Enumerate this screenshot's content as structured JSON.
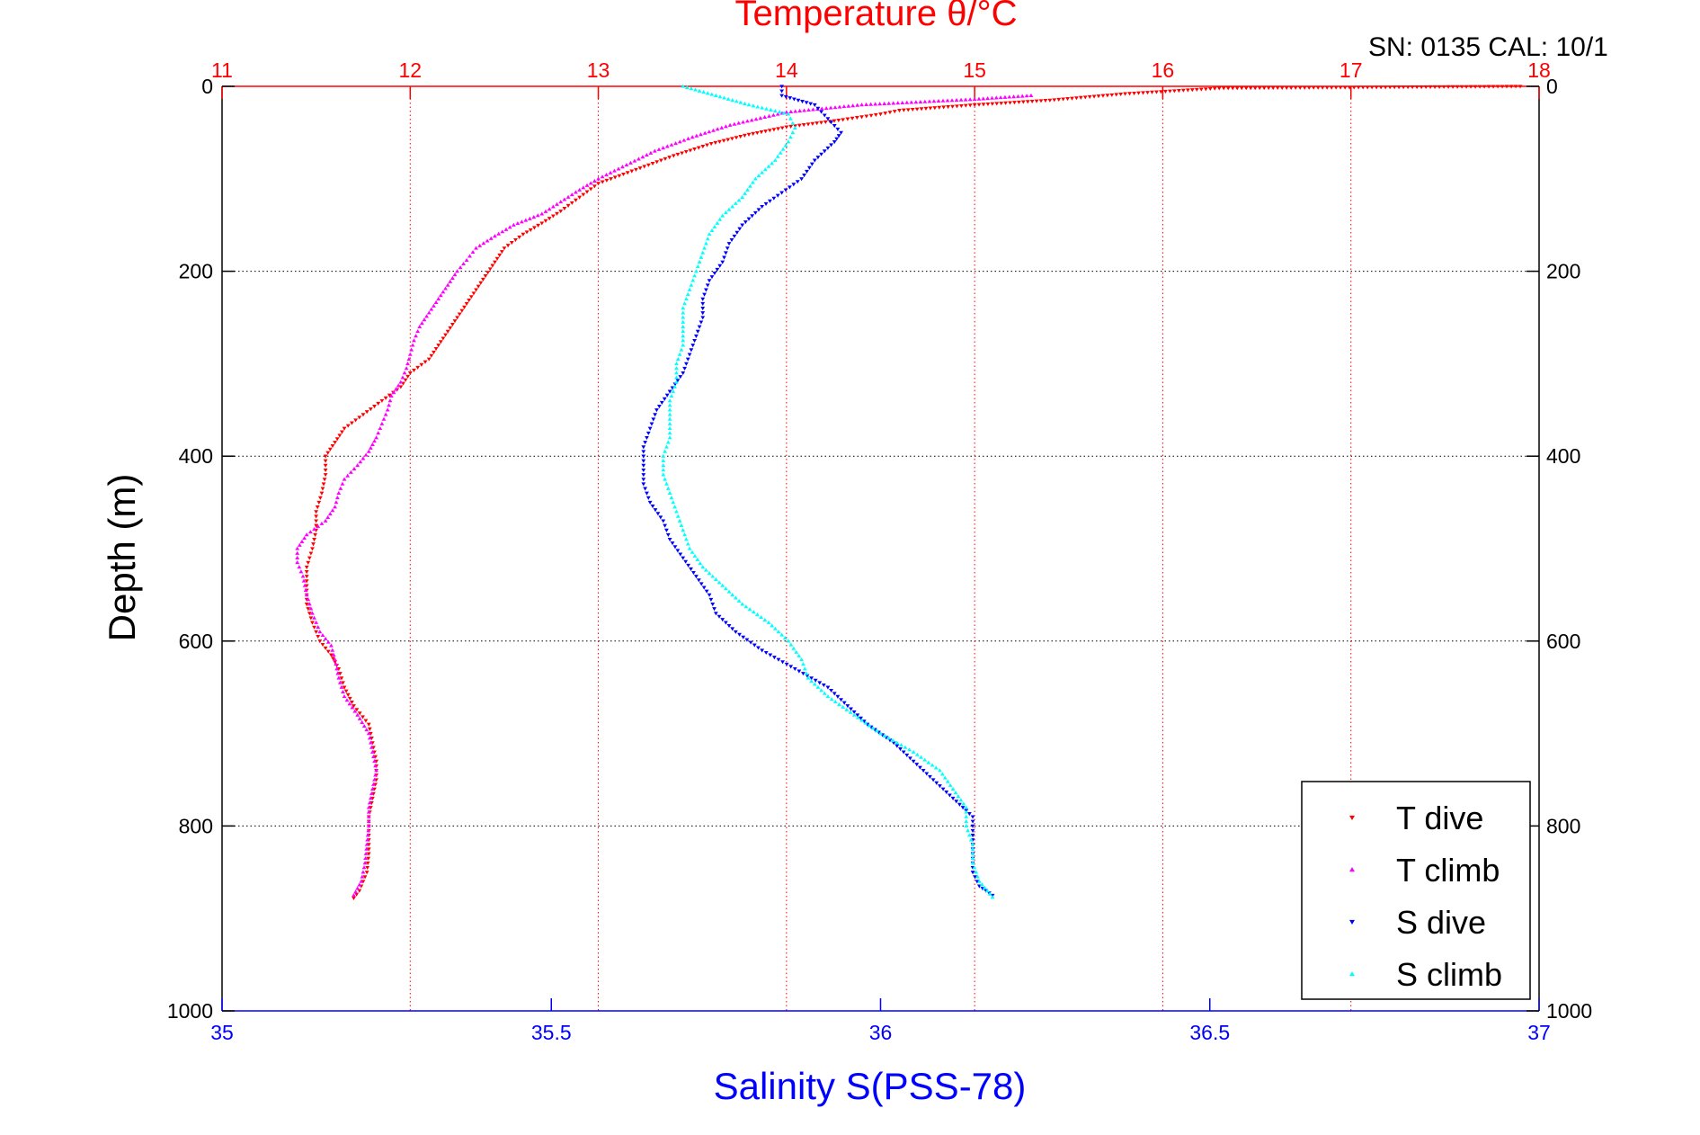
{
  "chart_data": {
    "type": "scatter",
    "title": "Temperature θ/°C",
    "corner_text": "SN: 0135  CAL: 10/1",
    "ylabel": "Depth (m)",
    "xlabel": "Salinity S(PSS-78)",
    "grid": true,
    "y_reversed": true,
    "ylim": [
      0,
      1000
    ],
    "y_ticks": [
      "0",
      "200",
      "400",
      "600",
      "800",
      "1000"
    ],
    "x_top": {
      "quantity": "temperature",
      "lim": [
        11,
        18
      ],
      "ticks": [
        "11",
        "12",
        "13",
        "14",
        "15",
        "16",
        "17",
        "18"
      ],
      "color": "#ff0000"
    },
    "x_bottom": {
      "quantity": "salinity",
      "lim": [
        35,
        37
      ],
      "ticks": [
        "35",
        "35.5",
        "36",
        "36.5",
        "37"
      ],
      "color": "#0000ff"
    },
    "legend": {
      "position": "bottom-right"
    },
    "series": [
      {
        "name": "T dive",
        "axis": "temperature",
        "color": "#ff0000",
        "marker": "triangle-down",
        "points": [
          [
            17.9,
            0
          ],
          [
            16.3,
            2
          ],
          [
            15.8,
            8
          ],
          [
            15.4,
            15
          ],
          [
            15.0,
            20
          ],
          [
            14.6,
            26
          ],
          [
            14.5,
            30
          ],
          [
            14.3,
            36
          ],
          [
            14.0,
            44
          ],
          [
            13.8,
            52
          ],
          [
            13.6,
            62
          ],
          [
            13.4,
            75
          ],
          [
            13.2,
            90
          ],
          [
            13.0,
            105
          ],
          [
            12.9,
            120
          ],
          [
            12.8,
            135
          ],
          [
            12.7,
            148
          ],
          [
            12.6,
            160
          ],
          [
            12.5,
            175
          ],
          [
            12.45,
            190
          ],
          [
            12.4,
            205
          ],
          [
            12.35,
            220
          ],
          [
            12.3,
            235
          ],
          [
            12.25,
            250
          ],
          [
            12.2,
            265
          ],
          [
            12.15,
            280
          ],
          [
            12.1,
            295
          ],
          [
            12.0,
            310
          ],
          [
            11.95,
            325
          ],
          [
            11.85,
            340
          ],
          [
            11.75,
            355
          ],
          [
            11.65,
            370
          ],
          [
            11.6,
            385
          ],
          [
            11.55,
            400
          ],
          [
            11.55,
            420
          ],
          [
            11.53,
            440
          ],
          [
            11.5,
            460
          ],
          [
            11.5,
            480
          ],
          [
            11.48,
            500
          ],
          [
            11.45,
            520
          ],
          [
            11.45,
            540
          ],
          [
            11.45,
            560
          ],
          [
            11.48,
            580
          ],
          [
            11.52,
            600
          ],
          [
            11.58,
            615
          ],
          [
            11.62,
            630
          ],
          [
            11.65,
            650
          ],
          [
            11.7,
            670
          ],
          [
            11.78,
            690
          ],
          [
            11.8,
            710
          ],
          [
            11.82,
            730
          ],
          [
            11.82,
            750
          ],
          [
            11.8,
            770
          ],
          [
            11.78,
            790
          ],
          [
            11.78,
            810
          ],
          [
            11.78,
            830
          ],
          [
            11.77,
            850
          ],
          [
            11.73,
            870
          ],
          [
            11.7,
            878
          ]
        ]
      },
      {
        "name": "T climb",
        "axis": "temperature",
        "color": "#ff00ff",
        "marker": "triangle-up",
        "points": [
          [
            15.3,
            10
          ],
          [
            15.0,
            14
          ],
          [
            14.4,
            20
          ],
          [
            14.0,
            28
          ],
          [
            13.7,
            42
          ],
          [
            13.5,
            55
          ],
          [
            13.3,
            70
          ],
          [
            13.15,
            85
          ],
          [
            13.0,
            100
          ],
          [
            12.9,
            112
          ],
          [
            12.8,
            125
          ],
          [
            12.7,
            138
          ],
          [
            12.55,
            150
          ],
          [
            12.45,
            162
          ],
          [
            12.35,
            175
          ],
          [
            12.3,
            188
          ],
          [
            12.25,
            200
          ],
          [
            12.2,
            215
          ],
          [
            12.15,
            230
          ],
          [
            12.1,
            245
          ],
          [
            12.05,
            260
          ],
          [
            12.02,
            275
          ],
          [
            12.0,
            290
          ],
          [
            11.98,
            305
          ],
          [
            11.95,
            320
          ],
          [
            11.9,
            335
          ],
          [
            11.88,
            350
          ],
          [
            11.85,
            365
          ],
          [
            11.82,
            380
          ],
          [
            11.78,
            395
          ],
          [
            11.72,
            410
          ],
          [
            11.65,
            425
          ],
          [
            11.62,
            440
          ],
          [
            11.6,
            455
          ],
          [
            11.55,
            470
          ],
          [
            11.45,
            485
          ],
          [
            11.4,
            500
          ],
          [
            11.4,
            515
          ],
          [
            11.43,
            530
          ],
          [
            11.45,
            550
          ],
          [
            11.48,
            570
          ],
          [
            11.52,
            590
          ],
          [
            11.58,
            605
          ],
          [
            11.6,
            620
          ],
          [
            11.62,
            640
          ],
          [
            11.65,
            660
          ],
          [
            11.72,
            680
          ],
          [
            11.78,
            700
          ],
          [
            11.8,
            720
          ],
          [
            11.82,
            740
          ],
          [
            11.8,
            760
          ],
          [
            11.78,
            780
          ],
          [
            11.78,
            800
          ],
          [
            11.77,
            820
          ],
          [
            11.76,
            840
          ],
          [
            11.74,
            860
          ],
          [
            11.7,
            875
          ]
        ]
      },
      {
        "name": "S dive",
        "axis": "salinity",
        "color": "#0000ff",
        "marker": "triangle-down",
        "points": [
          [
            35.85,
            0
          ],
          [
            35.85,
            10
          ],
          [
            35.9,
            20
          ],
          [
            35.92,
            35
          ],
          [
            35.94,
            50
          ],
          [
            35.93,
            60
          ],
          [
            35.9,
            80
          ],
          [
            35.88,
            100
          ],
          [
            35.85,
            115
          ],
          [
            35.82,
            130
          ],
          [
            35.79,
            150
          ],
          [
            35.77,
            170
          ],
          [
            35.76,
            190
          ],
          [
            35.74,
            210
          ],
          [
            35.73,
            230
          ],
          [
            35.73,
            250
          ],
          [
            35.72,
            270
          ],
          [
            35.71,
            290
          ],
          [
            35.7,
            310
          ],
          [
            35.68,
            330
          ],
          [
            35.66,
            350
          ],
          [
            35.65,
            370
          ],
          [
            35.64,
            390
          ],
          [
            35.64,
            410
          ],
          [
            35.64,
            430
          ],
          [
            35.65,
            450
          ],
          [
            35.67,
            470
          ],
          [
            35.68,
            490
          ],
          [
            35.7,
            510
          ],
          [
            35.72,
            530
          ],
          [
            35.74,
            550
          ],
          [
            35.75,
            570
          ],
          [
            35.78,
            590
          ],
          [
            35.82,
            610
          ],
          [
            35.87,
            630
          ],
          [
            35.92,
            650
          ],
          [
            35.95,
            670
          ],
          [
            35.98,
            690
          ],
          [
            36.02,
            710
          ],
          [
            36.05,
            730
          ],
          [
            36.08,
            750
          ],
          [
            36.11,
            770
          ],
          [
            36.14,
            790
          ],
          [
            36.14,
            810
          ],
          [
            36.14,
            830
          ],
          [
            36.14,
            850
          ],
          [
            36.15,
            865
          ],
          [
            36.17,
            875
          ]
        ]
      },
      {
        "name": "S climb",
        "axis": "salinity",
        "color": "#00ffff",
        "marker": "triangle-up",
        "points": [
          [
            35.7,
            0
          ],
          [
            35.75,
            10
          ],
          [
            35.8,
            20
          ],
          [
            35.86,
            30
          ],
          [
            35.87,
            45
          ],
          [
            35.86,
            60
          ],
          [
            35.84,
            80
          ],
          [
            35.81,
            100
          ],
          [
            35.79,
            120
          ],
          [
            35.76,
            140
          ],
          [
            35.74,
            160
          ],
          [
            35.73,
            180
          ],
          [
            35.72,
            200
          ],
          [
            35.71,
            220
          ],
          [
            35.7,
            240
          ],
          [
            35.7,
            260
          ],
          [
            35.7,
            280
          ],
          [
            35.69,
            300
          ],
          [
            35.69,
            320
          ],
          [
            35.68,
            340
          ],
          [
            35.68,
            360
          ],
          [
            35.68,
            380
          ],
          [
            35.67,
            400
          ],
          [
            35.67,
            420
          ],
          [
            35.68,
            440
          ],
          [
            35.69,
            460
          ],
          [
            35.7,
            480
          ],
          [
            35.71,
            500
          ],
          [
            35.73,
            520
          ],
          [
            35.76,
            540
          ],
          [
            35.79,
            560
          ],
          [
            35.83,
            580
          ],
          [
            35.86,
            600
          ],
          [
            35.88,
            620
          ],
          [
            35.89,
            640
          ],
          [
            35.92,
            660
          ],
          [
            35.96,
            680
          ],
          [
            36.0,
            700
          ],
          [
            36.05,
            720
          ],
          [
            36.09,
            740
          ],
          [
            36.11,
            760
          ],
          [
            36.13,
            780
          ],
          [
            36.13,
            800
          ],
          [
            36.14,
            820
          ],
          [
            36.14,
            840
          ],
          [
            36.15,
            860
          ],
          [
            36.17,
            877
          ]
        ]
      }
    ]
  }
}
